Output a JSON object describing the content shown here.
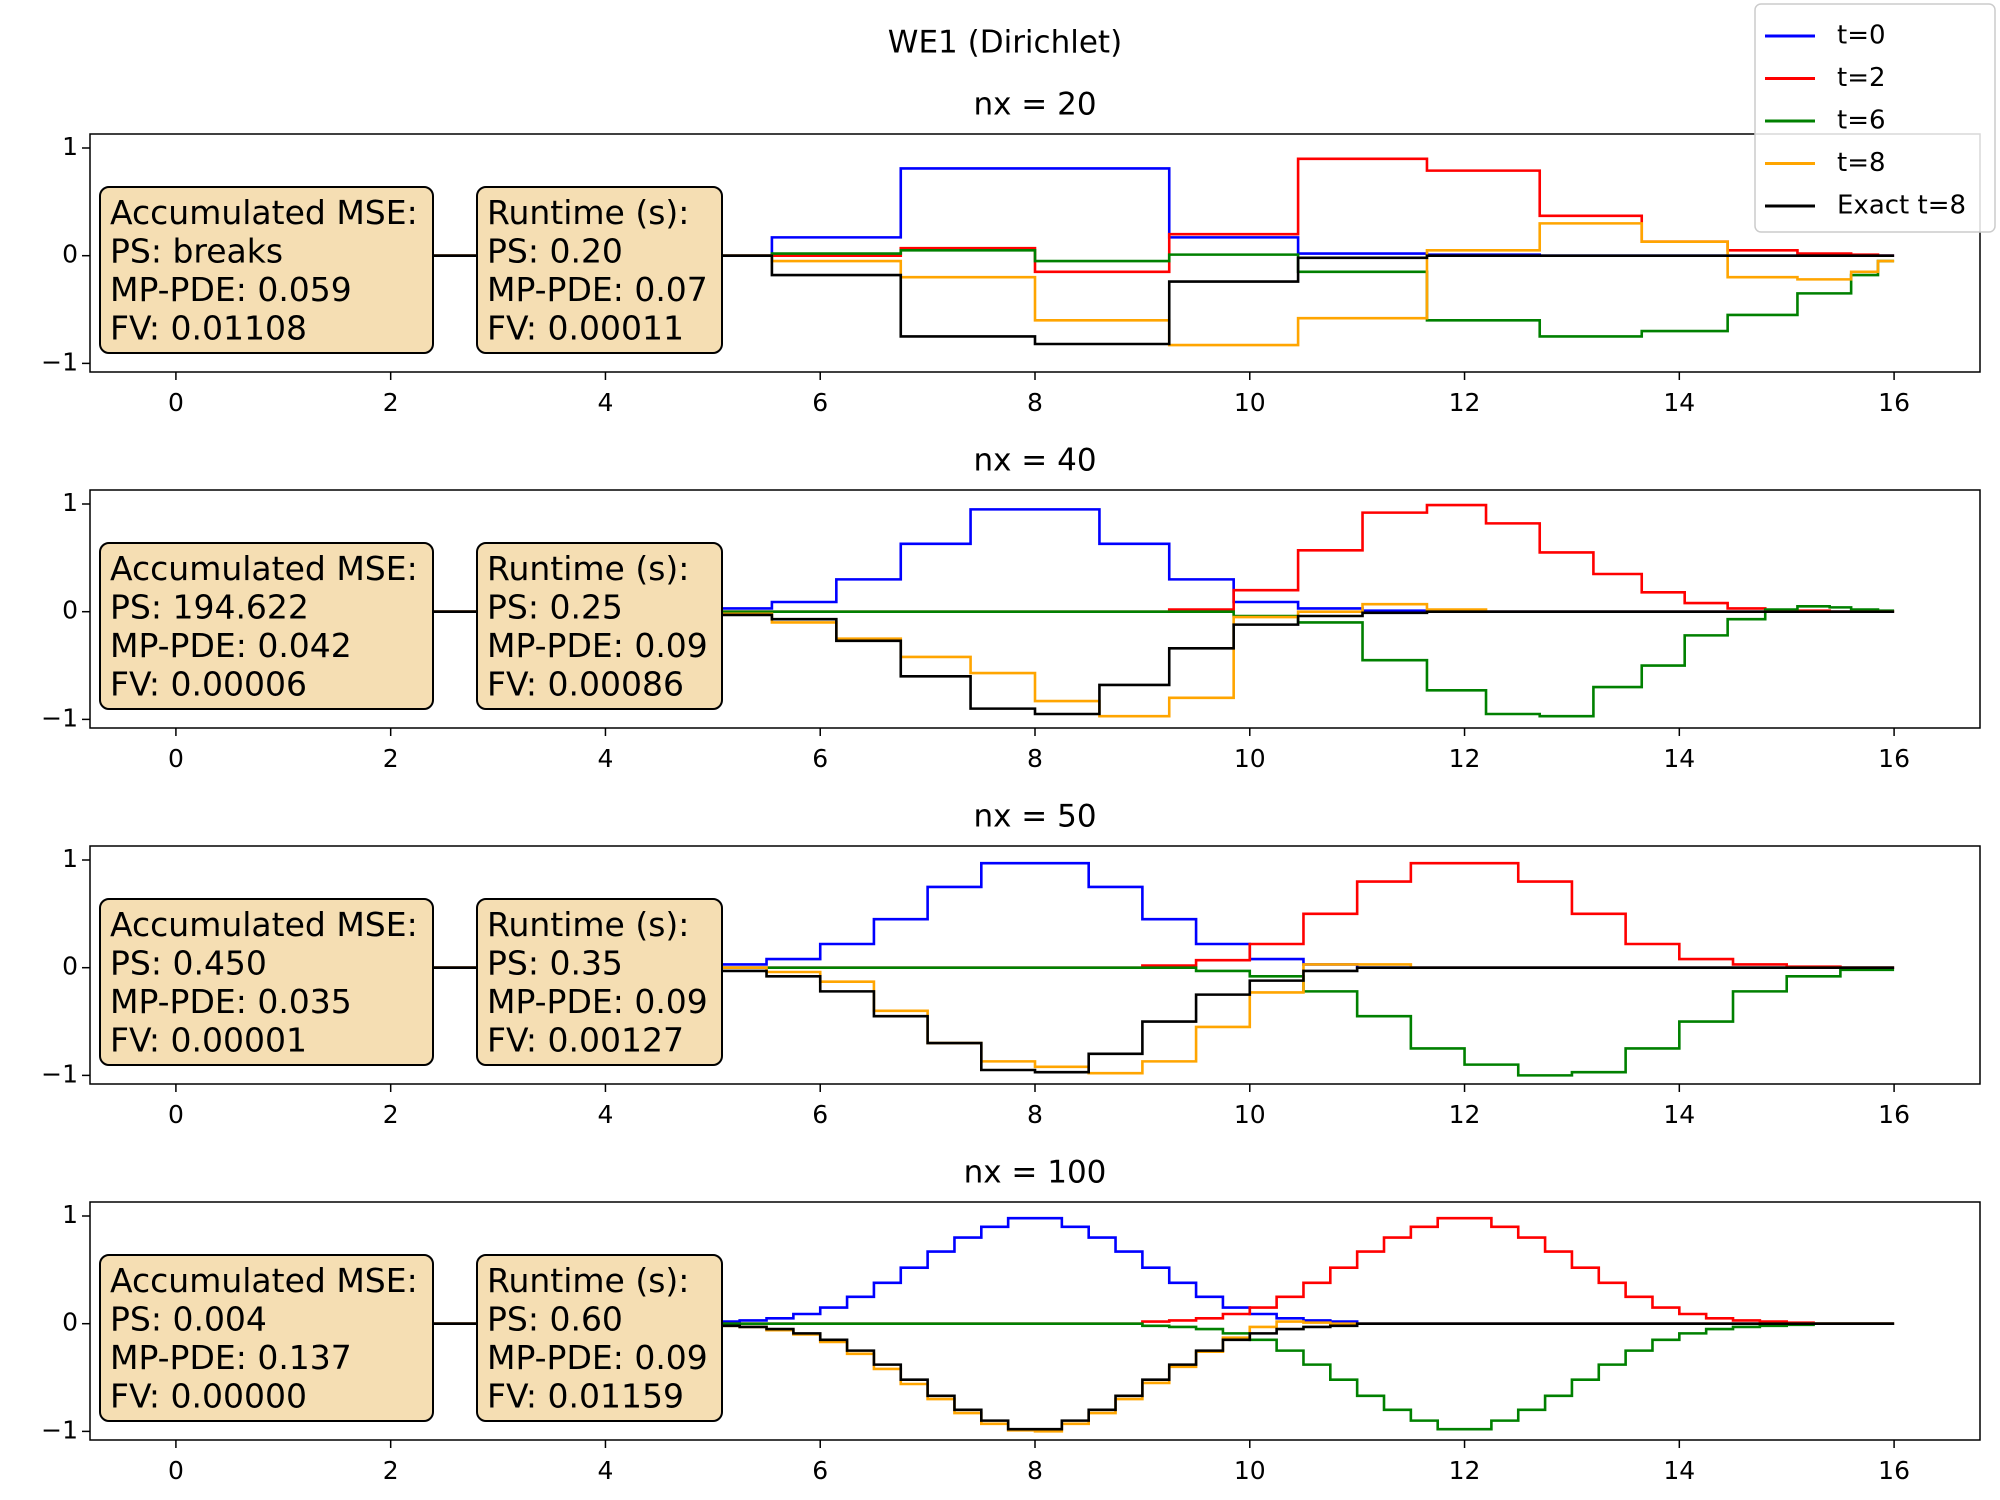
{
  "suptitle": "WE1 (Dirichlet)",
  "legend": {
    "loc": "upper right",
    "series": [
      {
        "name": "t=0",
        "color": "#0000ff"
      },
      {
        "name": "t=2",
        "color": "#ff0000"
      },
      {
        "name": "t=6",
        "color": "#008000"
      },
      {
        "name": "t=8",
        "color": "#ffa500"
      },
      {
        "name": "Exact t=8",
        "color": "#000000"
      }
    ]
  },
  "chart_data": [
    {
      "type": "step",
      "title": "nx = 20",
      "xlim": [
        -0.8,
        16.8
      ],
      "ylim": [
        -1.08,
        1.13
      ],
      "xticks": [
        0,
        2,
        4,
        6,
        8,
        10,
        12,
        14,
        16
      ],
      "yticks": [
        {
          "value": -1,
          "label": "−1"
        },
        0,
        1
      ],
      "x": [
        0,
        5.55,
        6.75,
        8.0,
        9.25,
        10.45,
        11.65,
        12.7,
        13.65,
        14.45,
        15.1,
        15.6,
        15.85,
        16
      ],
      "series": [
        {
          "values": [
            0,
            0.17,
            0.81,
            0.81,
            0.17,
            0.02,
            0.01,
            0,
            0,
            0,
            0,
            0,
            0,
            0
          ]
        },
        {
          "values": [
            0,
            0,
            0.07,
            -0.15,
            0.2,
            0.9,
            0.79,
            0.37,
            0.13,
            0.05,
            0.02,
            0.01,
            0,
            0
          ]
        },
        {
          "values": [
            0,
            0.02,
            0.05,
            -0.05,
            0.01,
            -0.15,
            -0.6,
            -0.75,
            -0.7,
            -0.55,
            -0.35,
            -0.18,
            -0.05,
            -0.05
          ]
        },
        {
          "values": [
            0,
            -0.05,
            -0.2,
            -0.6,
            -0.83,
            -0.58,
            0.05,
            0.3,
            0.13,
            -0.2,
            -0.22,
            -0.15,
            -0.05,
            -0.05
          ]
        },
        {
          "values": [
            0,
            -0.18,
            -0.75,
            -0.82,
            -0.24,
            -0.02,
            0,
            0,
            0,
            0,
            0,
            0,
            0,
            0
          ]
        }
      ],
      "annotations": [
        {
          "lines": [
            "Accumulated MSE:",
            "PS: breaks",
            "MP-PDE: 0.059",
            "FV: 0.01108"
          ]
        },
        {
          "lines": [
            "Runtime (s):",
            "PS: 0.20",
            "MP-PDE: 0.07",
            "FV: 0.00011"
          ]
        }
      ]
    },
    {
      "type": "step",
      "title": "nx = 40",
      "xlim": [
        -0.8,
        16.8
      ],
      "ylim": [
        -1.08,
        1.13
      ],
      "xticks": [
        0,
        2,
        4,
        6,
        8,
        10,
        12,
        14,
        16
      ],
      "yticks": [
        {
          "value": -1,
          "label": "−1"
        },
        0,
        1
      ],
      "x": [
        0,
        5.0,
        5.55,
        6.15,
        6.75,
        7.4,
        8.0,
        8.6,
        9.25,
        9.85,
        10.45,
        11.05,
        11.65,
        12.2,
        12.7,
        13.2,
        13.65,
        14.05,
        14.45,
        14.8,
        15.1,
        15.4,
        15.6,
        15.85,
        16
      ],
      "series": [
        {
          "values": [
            0,
            0.03,
            0.09,
            0.3,
            0.63,
            0.95,
            0.95,
            0.63,
            0.3,
            0.09,
            0.03,
            0.01,
            0,
            0,
            0,
            0,
            0,
            0,
            0,
            0,
            0,
            0,
            0,
            0,
            0
          ]
        },
        {
          "values": [
            0,
            0,
            0,
            0,
            0,
            0,
            0,
            0,
            0.02,
            0.2,
            0.57,
            0.92,
            0.99,
            0.82,
            0.55,
            0.35,
            0.18,
            0.08,
            0.03,
            0.01,
            0.01,
            0,
            0,
            0,
            0
          ]
        },
        {
          "values": [
            0,
            0,
            0,
            0,
            0,
            0,
            0,
            0,
            0,
            -0.04,
            -0.1,
            -0.45,
            -0.73,
            -0.95,
            -0.97,
            -0.7,
            -0.5,
            -0.22,
            -0.07,
            0.02,
            0.05,
            0.04,
            0.02,
            0.01,
            0.01
          ]
        },
        {
          "values": [
            0,
            -0.02,
            -0.1,
            -0.25,
            -0.42,
            -0.57,
            -0.83,
            -0.97,
            -0.8,
            -0.05,
            0,
            0.07,
            0.02,
            0,
            0,
            0,
            0,
            0,
            0,
            0,
            0,
            0,
            0,
            0,
            0
          ]
        },
        {
          "values": [
            0,
            -0.03,
            -0.07,
            -0.27,
            -0.6,
            -0.9,
            -0.95,
            -0.68,
            -0.34,
            -0.12,
            -0.04,
            -0.01,
            0,
            0,
            0,
            0,
            0,
            0,
            0,
            0,
            0,
            0,
            0,
            0,
            0
          ]
        }
      ],
      "annotations": [
        {
          "lines": [
            "Accumulated MSE:",
            "PS: 194.622",
            "MP-PDE: 0.042",
            "FV: 0.00006"
          ]
        },
        {
          "lines": [
            "Runtime (s):",
            "PS: 0.25",
            "MP-PDE: 0.09",
            "FV: 0.00086"
          ]
        }
      ]
    },
    {
      "type": "step",
      "title": "nx = 50",
      "xlim": [
        -0.8,
        16.8
      ],
      "ylim": [
        -1.08,
        1.13
      ],
      "xticks": [
        0,
        2,
        4,
        6,
        8,
        10,
        12,
        14,
        16
      ],
      "yticks": [
        {
          "value": -1,
          "label": "−1"
        },
        0,
        1
      ],
      "x": [
        0,
        5,
        5.5,
        6,
        6.5,
        7,
        7.5,
        8,
        8.5,
        9,
        9.5,
        10,
        10.5,
        11,
        11.5,
        12,
        12.5,
        13,
        13.5,
        14,
        14.5,
        15,
        15.5,
        16
      ],
      "series": [
        {
          "values": [
            0,
            0.03,
            0.08,
            0.22,
            0.45,
            0.75,
            0.97,
            0.97,
            0.75,
            0.45,
            0.22,
            0.08,
            0.03,
            0,
            0,
            0,
            0,
            0,
            0,
            0,
            0,
            0,
            0,
            0
          ]
        },
        {
          "values": [
            0,
            0,
            0,
            0,
            0,
            0,
            0,
            0,
            0,
            0.02,
            0.07,
            0.22,
            0.5,
            0.8,
            0.97,
            0.97,
            0.8,
            0.5,
            0.22,
            0.08,
            0.03,
            0.01,
            0,
            0
          ]
        },
        {
          "values": [
            0,
            0,
            0,
            0,
            0,
            0,
            0,
            0,
            0,
            0,
            -0.03,
            -0.08,
            -0.22,
            -0.45,
            -0.75,
            -0.9,
            -1.0,
            -0.97,
            -0.75,
            -0.5,
            -0.22,
            -0.08,
            -0.02,
            -0.02
          ]
        },
        {
          "values": [
            0,
            0,
            -0.04,
            -0.13,
            -0.4,
            -0.7,
            -0.87,
            -0.92,
            -0.98,
            -0.87,
            -0.55,
            -0.23,
            0.03,
            0.03,
            0,
            0,
            0,
            0,
            0,
            0,
            0,
            0,
            0,
            0
          ]
        },
        {
          "values": [
            0,
            -0.03,
            -0.08,
            -0.22,
            -0.45,
            -0.7,
            -0.95,
            -0.97,
            -0.8,
            -0.5,
            -0.25,
            -0.12,
            -0.03,
            0,
            0,
            0,
            0,
            0,
            0,
            0,
            0,
            0,
            0,
            0
          ]
        }
      ],
      "annotations": [
        {
          "lines": [
            "Accumulated MSE:",
            "PS: 0.450",
            "MP-PDE: 0.035",
            "FV: 0.00001"
          ]
        },
        {
          "lines": [
            "Runtime (s):",
            "PS: 0.35",
            "MP-PDE: 0.09",
            "FV: 0.00127"
          ]
        }
      ]
    },
    {
      "type": "step",
      "title": "nx = 100",
      "xlim": [
        -0.8,
        16.8
      ],
      "ylim": [
        -1.08,
        1.13
      ],
      "xticks": [
        0,
        2,
        4,
        6,
        8,
        10,
        12,
        14,
        16
      ],
      "yticks": [
        {
          "value": -1,
          "label": "−1"
        },
        0,
        1
      ],
      "x": [
        0,
        5,
        5.25,
        5.5,
        5.75,
        6,
        6.25,
        6.5,
        6.75,
        7,
        7.25,
        7.5,
        7.75,
        8,
        8.25,
        8.5,
        8.75,
        9,
        9.25,
        9.5,
        9.75,
        10,
        10.25,
        10.5,
        10.75,
        11,
        11.25,
        11.5,
        11.75,
        12,
        12.25,
        12.5,
        12.75,
        13,
        13.25,
        13.5,
        13.75,
        14,
        14.25,
        14.5,
        14.75,
        15,
        15.25,
        15.5,
        15.75,
        16
      ],
      "series": [
        {
          "values": [
            0,
            0.02,
            0.03,
            0.05,
            0.09,
            0.15,
            0.25,
            0.38,
            0.52,
            0.67,
            0.8,
            0.9,
            0.98,
            0.98,
            0.9,
            0.8,
            0.67,
            0.52,
            0.38,
            0.25,
            0.15,
            0.09,
            0.05,
            0.03,
            0.02,
            0,
            0,
            0,
            0,
            0,
            0,
            0,
            0,
            0,
            0,
            0,
            0,
            0,
            0,
            0,
            0,
            0,
            0,
            0,
            0,
            0
          ]
        },
        {
          "values": [
            0,
            0,
            0,
            0,
            0,
            0,
            0,
            0,
            0,
            0,
            0,
            0,
            0,
            0,
            0,
            0,
            0,
            0.02,
            0.03,
            0.05,
            0.09,
            0.15,
            0.25,
            0.38,
            0.52,
            0.67,
            0.8,
            0.9,
            0.98,
            0.98,
            0.9,
            0.8,
            0.67,
            0.52,
            0.38,
            0.25,
            0.15,
            0.09,
            0.05,
            0.03,
            0.02,
            0.01,
            0,
            0,
            0,
            0
          ]
        },
        {
          "values": [
            0,
            0,
            0,
            0,
            0,
            0,
            0,
            0,
            0,
            0,
            0,
            0,
            0,
            0,
            0,
            0,
            0,
            -0.02,
            -0.03,
            -0.05,
            -0.09,
            -0.15,
            -0.25,
            -0.38,
            -0.52,
            -0.67,
            -0.8,
            -0.9,
            -0.98,
            -0.98,
            -0.9,
            -0.8,
            -0.67,
            -0.52,
            -0.38,
            -0.25,
            -0.15,
            -0.09,
            -0.05,
            -0.03,
            -0.02,
            -0.01,
            0,
            0,
            0,
            0
          ]
        },
        {
          "values": [
            0,
            -0.02,
            -0.03,
            -0.06,
            -0.1,
            -0.17,
            -0.28,
            -0.42,
            -0.56,
            -0.7,
            -0.83,
            -0.93,
            -0.99,
            -1.0,
            -0.93,
            -0.83,
            -0.7,
            -0.55,
            -0.4,
            -0.26,
            -0.13,
            -0.03,
            0.02,
            0.01,
            0,
            0,
            0,
            0,
            0,
            0,
            0,
            0,
            0,
            0,
            0,
            0,
            0,
            0,
            0,
            0,
            0,
            0,
            0,
            0,
            0,
            0
          ]
        },
        {
          "values": [
            0,
            -0.02,
            -0.03,
            -0.05,
            -0.09,
            -0.15,
            -0.25,
            -0.38,
            -0.52,
            -0.67,
            -0.8,
            -0.9,
            -0.98,
            -0.98,
            -0.9,
            -0.8,
            -0.67,
            -0.52,
            -0.38,
            -0.25,
            -0.15,
            -0.09,
            -0.05,
            -0.03,
            -0.02,
            0,
            0,
            0,
            0,
            0,
            0,
            0,
            0,
            0,
            0,
            0,
            0,
            0,
            0,
            0,
            0,
            0,
            0,
            0,
            0,
            0
          ]
        }
      ],
      "annotations": [
        {
          "lines": [
            "Accumulated MSE:",
            "PS: 0.004",
            "MP-PDE: 0.137",
            "FV: 0.00000"
          ]
        },
        {
          "lines": [
            "Runtime (s):",
            "PS: 0.60",
            "MP-PDE: 0.09",
            "FV: 0.01159"
          ]
        }
      ]
    }
  ]
}
